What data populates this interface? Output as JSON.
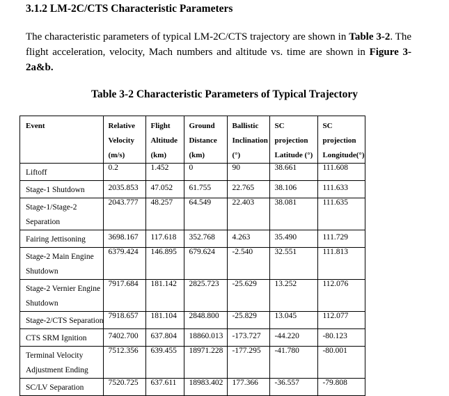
{
  "section_heading": "3.1.2 LM-2C/CTS Characteristic Parameters",
  "paragraph": {
    "t1": "The characteristic parameters of typical LM-2C/CTS trajectory are shown in ",
    "b1": "Table 3-2",
    "t2": ". The flight acceleration, velocity, Mach numbers and altitude vs. time are shown in ",
    "b2": "Figure 3-2a&b."
  },
  "table_caption": "Table 3-2 Characteristic Parameters of Typical Trajectory",
  "table": {
    "headers": [
      [
        "Event"
      ],
      [
        "Relative",
        "Velocity",
        "(m/s)"
      ],
      [
        "Flight",
        "Altitude",
        "(km)"
      ],
      [
        "Ground",
        "Distance",
        "(km)"
      ],
      [
        "Ballistic",
        "Inclination",
        "(°)"
      ],
      [
        "SC",
        "projection",
        "Latitude (°)"
      ],
      [
        "SC",
        "projection",
        "Longitude(°)"
      ]
    ],
    "rows": [
      {
        "event": [
          "Liftoff"
        ],
        "values": [
          "0.2",
          "1.452",
          "0",
          "90",
          "38.661",
          "111.608"
        ]
      },
      {
        "event": [
          "Stage-1 Shutdown"
        ],
        "values": [
          "2035.853",
          "47.052",
          "61.755",
          "22.765",
          "38.106",
          "111.633"
        ]
      },
      {
        "event": [
          "Stage-1/Stage-2",
          "Separation"
        ],
        "values": [
          "2043.777",
          "48.257",
          "64.549",
          "22.403",
          "38.081",
          "111.635"
        ]
      },
      {
        "event": [
          "Fairing Jettisoning"
        ],
        "values": [
          "3698.167",
          "117.618",
          "352.768",
          "4.263",
          "35.490",
          "111.729"
        ]
      },
      {
        "event": [
          "Stage-2 Main Engine",
          "Shutdown"
        ],
        "values": [
          "6379.424",
          "146.895",
          "679.624",
          "-2.540",
          "32.551",
          "111.813"
        ]
      },
      {
        "event": [
          "Stage-2 Vernier Engine",
          "Shutdown"
        ],
        "values": [
          "7917.684",
          "181.142",
          "2825.723",
          "-25.629",
          "13.252",
          "112.076"
        ]
      },
      {
        "event": [
          "Stage-2/CTS Separation"
        ],
        "values": [
          "7918.657",
          "181.104",
          "2848.800",
          "-25.829",
          "13.045",
          "112.077"
        ]
      },
      {
        "event": [
          "CTS SRM Ignition"
        ],
        "values": [
          "7402.700",
          "637.804",
          "18860.013",
          "-173.727",
          "-44.220",
          "-80.123"
        ]
      },
      {
        "event": [
          "Terminal Velocity",
          "Adjustment Ending"
        ],
        "values": [
          "7512.356",
          "639.455",
          "18971.228",
          "-177.295",
          "-41.780",
          "-80.001"
        ]
      },
      {
        "event": [
          "SC/LV Separation"
        ],
        "values": [
          "7520.725",
          "637.611",
          "18983.402",
          "177.366",
          "-36.557",
          "-79.808"
        ]
      }
    ]
  }
}
